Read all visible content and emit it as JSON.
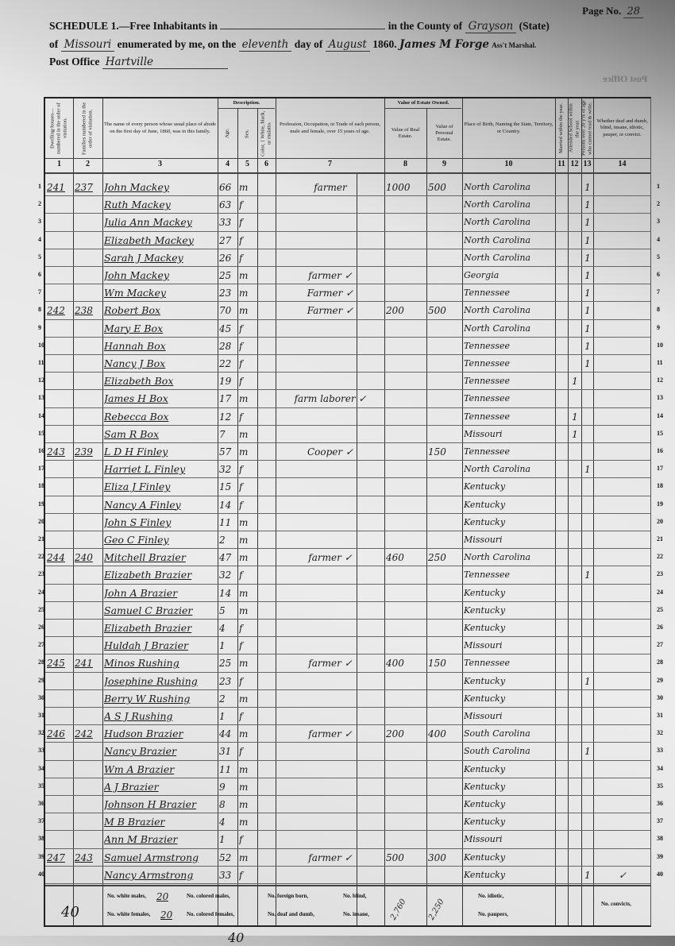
{
  "header": {
    "page_label": "Page No.",
    "page_no": "28",
    "schedule_title": "SCHEDULE 1.—Free Inhabitants in",
    "township": "",
    "county_label": "in the County of",
    "county": "Grayson",
    "state_label": "State",
    "of_label": "of",
    "state": "Missouri",
    "enumerated_label": "enumerated by me, on the",
    "day": "eleventh",
    "day_of_label": "day of",
    "month": "August",
    "year": "1860.",
    "marshal": "James M Forge",
    "marshal_label": "Ass't Marshal.",
    "post_office_label": "Post Office",
    "post_office": "Hartville",
    "post_office_mirror": "Post Office"
  },
  "columns": [
    {
      "num": "1",
      "label": "Dwelling-houses—numbered in the order of visitation."
    },
    {
      "num": "2",
      "label": "Families numbered in the order of visitation."
    },
    {
      "num": "3",
      "label": "The name of every person whose usual place of abode on the first day of June, 1860, was in this family."
    },
    {
      "num": "4",
      "label": "Age."
    },
    {
      "num": "5",
      "label": "Sex."
    },
    {
      "num": "6",
      "label": "Color, { White, black, or mulatto."
    },
    {
      "num": "7",
      "label": "Profession, Occupation, or Trade of each person, male and female, over 15 years of age."
    },
    {
      "num": "8",
      "label": "Value of Real Estate."
    },
    {
      "num": "9",
      "label": "Value of Personal Estate."
    },
    {
      "num": "10",
      "label": "Place of Birth, Naming the State, Territory, or Country."
    },
    {
      "num": "11",
      "label": "Married within the year."
    },
    {
      "num": "12",
      "label": "Attended School within the year."
    },
    {
      "num": "13",
      "label": "Persons over 20 y'rs of age who cannot read & write."
    },
    {
      "num": "14",
      "label": "Whether deaf and dumb, blind, insane, idiotic, pauper, or convict."
    }
  ],
  "group_headers": {
    "description": "Description.",
    "estate": "Value of Estate Owned."
  },
  "rows": [
    [
      "1",
      "241",
      "237",
      "John Mackey",
      "66",
      "m",
      "",
      "farmer",
      "1000",
      "500",
      "North Carolina",
      "",
      "",
      "1",
      ""
    ],
    [
      "2",
      "",
      "",
      "Ruth Mackey",
      "63",
      "f",
      "",
      "",
      "",
      "",
      "North Carolina",
      "",
      "",
      "1",
      ""
    ],
    [
      "3",
      "",
      "",
      "Julia Ann Mackey",
      "33",
      "f",
      "",
      "",
      "",
      "",
      "North Carolina",
      "",
      "",
      "1",
      ""
    ],
    [
      "4",
      "",
      "",
      "Elizabeth Mackey",
      "27",
      "f",
      "",
      "",
      "",
      "",
      "North Carolina",
      "",
      "",
      "1",
      ""
    ],
    [
      "5",
      "",
      "",
      "Sarah J Mackey",
      "26",
      "f",
      "",
      "",
      "",
      "",
      "North Carolina",
      "",
      "",
      "1",
      ""
    ],
    [
      "6",
      "",
      "",
      "John Mackey",
      "25",
      "m",
      "",
      "farmer ✓",
      "",
      "",
      "Georgia",
      "",
      "",
      "1",
      ""
    ],
    [
      "7",
      "",
      "",
      "Wm Mackey",
      "23",
      "m",
      "",
      "Farmer ✓",
      "",
      "",
      "Tennessee",
      "",
      "",
      "1",
      ""
    ],
    [
      "8",
      "242",
      "238",
      "Robert Box",
      "70",
      "m",
      "",
      "Farmer ✓",
      "200",
      "500",
      "North Carolina",
      "",
      "",
      "1",
      ""
    ],
    [
      "9",
      "",
      "",
      "Mary E Box",
      "45",
      "f",
      "",
      "",
      "",
      "",
      "North Carolina",
      "",
      "",
      "1",
      ""
    ],
    [
      "10",
      "",
      "",
      "Hannah Box",
      "28",
      "f",
      "",
      "",
      "",
      "",
      "Tennessee",
      "",
      "",
      "1",
      ""
    ],
    [
      "11",
      "",
      "",
      "Nancy J Box",
      "22",
      "f",
      "",
      "",
      "",
      "",
      "Tennessee",
      "",
      "",
      "1",
      ""
    ],
    [
      "12",
      "",
      "",
      "Elizabeth Box",
      "19",
      "f",
      "",
      "",
      "",
      "",
      "Tennessee",
      "",
      "1",
      "",
      ""
    ],
    [
      "13",
      "",
      "",
      "James H Box",
      "17",
      "m",
      "",
      "farm laborer ✓",
      "",
      "",
      "Tennessee",
      "",
      "",
      "",
      ""
    ],
    [
      "14",
      "",
      "",
      "Rebecca Box",
      "12",
      "f",
      "",
      "",
      "",
      "",
      "Tennessee",
      "",
      "1",
      "",
      ""
    ],
    [
      "15",
      "",
      "",
      "Sam R Box",
      "7",
      "m",
      "",
      "",
      "",
      "",
      "Missouri",
      "",
      "1",
      "",
      ""
    ],
    [
      "16",
      "243",
      "239",
      "L D H Finley",
      "57",
      "m",
      "",
      "Cooper ✓",
      "",
      "150",
      "Tennessee",
      "",
      "",
      "",
      ""
    ],
    [
      "17",
      "",
      "",
      "Harriet L Finley",
      "32",
      "f",
      "",
      "",
      "",
      "",
      "North Carolina",
      "",
      "",
      "1",
      ""
    ],
    [
      "18",
      "",
      "",
      "Eliza J Finley",
      "15",
      "f",
      "",
      "",
      "",
      "",
      "Kentucky",
      "",
      "",
      "",
      ""
    ],
    [
      "19",
      "",
      "",
      "Nancy A Finley",
      "14",
      "f",
      "",
      "",
      "",
      "",
      "Kentucky",
      "",
      "",
      "",
      ""
    ],
    [
      "20",
      "",
      "",
      "John S Finley",
      "11",
      "m",
      "",
      "",
      "",
      "",
      "Kentucky",
      "",
      "",
      "",
      ""
    ],
    [
      "21",
      "",
      "",
      "Geo C Finley",
      "2",
      "m",
      "",
      "",
      "",
      "",
      "Missouri",
      "",
      "",
      "",
      ""
    ],
    [
      "22",
      "244",
      "240",
      "Mitchell Brazier",
      "47",
      "m",
      "",
      "farmer ✓",
      "460",
      "250",
      "North Carolina",
      "",
      "",
      "",
      ""
    ],
    [
      "23",
      "",
      "",
      "Elizabeth Brazier",
      "32",
      "f",
      "",
      "",
      "",
      "",
      "Tennessee",
      "",
      "",
      "1",
      ""
    ],
    [
      "24",
      "",
      "",
      "John A Brazier",
      "14",
      "m",
      "",
      "",
      "",
      "",
      "Kentucky",
      "",
      "",
      "",
      ""
    ],
    [
      "25",
      "",
      "",
      "Samuel C Brazier",
      "5",
      "m",
      "",
      "",
      "",
      "",
      "Kentucky",
      "",
      "",
      "",
      ""
    ],
    [
      "26",
      "",
      "",
      "Elizabeth Brazier",
      "4",
      "f",
      "",
      "",
      "",
      "",
      "Kentucky",
      "",
      "",
      "",
      ""
    ],
    [
      "27",
      "",
      "",
      "Huldah J Brazier",
      "1",
      "f",
      "",
      "",
      "",
      "",
      "Missouri",
      "",
      "",
      "",
      ""
    ],
    [
      "28",
      "245",
      "241",
      "Minos Rushing",
      "25",
      "m",
      "",
      "farmer ✓",
      "400",
      "150",
      "Tennessee",
      "",
      "",
      "",
      ""
    ],
    [
      "29",
      "",
      "",
      "Josephine Rushing",
      "23",
      "f",
      "",
      "",
      "",
      "",
      "Kentucky",
      "",
      "",
      "1",
      ""
    ],
    [
      "30",
      "",
      "",
      "Berry W Rushing",
      "2",
      "m",
      "",
      "",
      "",
      "",
      "Kentucky",
      "",
      "",
      "",
      ""
    ],
    [
      "31",
      "",
      "",
      "A S J Rushing",
      "1",
      "f",
      "",
      "",
      "",
      "",
      "Missouri",
      "",
      "",
      "",
      ""
    ],
    [
      "32",
      "246",
      "242",
      "Hudson Brazier",
      "44",
      "m",
      "",
      "farmer ✓",
      "200",
      "400",
      "South Carolina",
      "",
      "",
      "",
      ""
    ],
    [
      "33",
      "",
      "",
      "Nancy Brazier",
      "31",
      "f",
      "",
      "",
      "",
      "",
      "South Carolina",
      "",
      "",
      "1",
      ""
    ],
    [
      "34",
      "",
      "",
      "Wm A Brazier",
      "11",
      "m",
      "",
      "",
      "",
      "",
      "Kentucky",
      "",
      "",
      "",
      ""
    ],
    [
      "35",
      "",
      "",
      "A J Brazier",
      "9",
      "m",
      "",
      "",
      "",
      "",
      "Kentucky",
      "",
      "",
      "",
      ""
    ],
    [
      "36",
      "",
      "",
      "Johnson H Brazier",
      "8",
      "m",
      "",
      "",
      "",
      "",
      "Kentucky",
      "",
      "",
      "",
      ""
    ],
    [
      "37",
      "",
      "",
      "M B Brazier",
      "4",
      "m",
      "",
      "",
      "",
      "",
      "Kentucky",
      "",
      "",
      "",
      ""
    ],
    [
      "38",
      "",
      "",
      "Ann M Brazier",
      "1",
      "f",
      "",
      "",
      "",
      "",
      "Missouri",
      "",
      "",
      "",
      ""
    ],
    [
      "39",
      "247",
      "243",
      "Samuel Armstrong",
      "52",
      "m",
      "",
      "farmer ✓",
      "500",
      "300",
      "Kentucky",
      "",
      "",
      "",
      ""
    ],
    [
      "40",
      "",
      "",
      "Nancy Armstrong",
      "33",
      "f",
      "",
      "",
      "",
      "",
      "Kentucky",
      "",
      "",
      "1",
      "✓"
    ]
  ],
  "footer": {
    "page_total": "40",
    "bottom_total": "40",
    "white_males_label": "No. white males,",
    "white_males": "20",
    "white_females_label": "No. white females,",
    "white_females": "20",
    "colored_males_label": "No. colored males,",
    "colored_females_label": "No. colored females,",
    "foreign_born_label": "No. foreign born,",
    "deaf_dumb_label": "No. deaf and dumb,",
    "blind_label": "No. blind,",
    "insane_label": "No. insane,",
    "real_total": "2,760",
    "personal_total": "2,250",
    "idiotic_label": "No. idiotic,",
    "paupers_label": "No. paupers,",
    "convicts_label": "No. convicts,"
  }
}
